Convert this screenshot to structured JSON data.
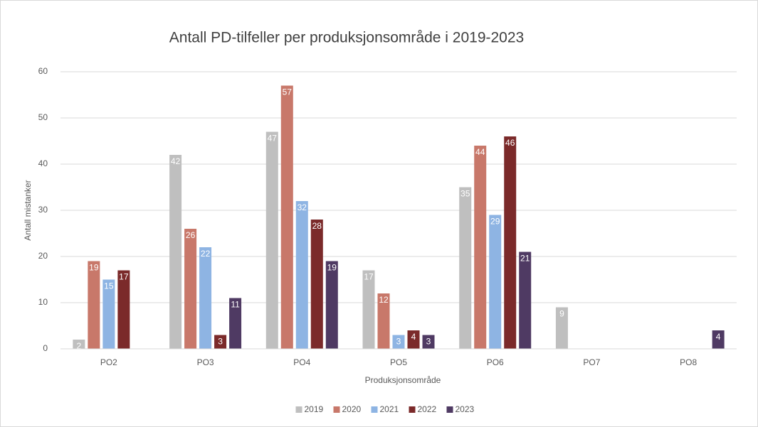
{
  "chart_data": {
    "type": "bar",
    "title": "Antall PD-tilfeller per produksjonsområde i 2019-2023",
    "x_label": "Produksjonsområde",
    "y_label": "Antall mistanker",
    "categories": [
      "PO2",
      "PO3",
      "PO4",
      "PO5",
      "PO6",
      "PO7",
      "PO8"
    ],
    "series": [
      {
        "name": "2019",
        "color": "#bfbfbf",
        "values": [
          2,
          42,
          47,
          17,
          35,
          9,
          null
        ]
      },
      {
        "name": "2020",
        "color": "#c8786a",
        "values": [
          19,
          26,
          57,
          12,
          44,
          null,
          null
        ]
      },
      {
        "name": "2021",
        "color": "#8eb4e3",
        "values": [
          15,
          22,
          32,
          3,
          29,
          null,
          null
        ]
      },
      {
        "name": "2022",
        "color": "#7b2a2a",
        "values": [
          17,
          3,
          28,
          4,
          46,
          null,
          null
        ]
      },
      {
        "name": "2023",
        "color": "#4f3a63",
        "values": [
          null,
          11,
          19,
          3,
          21,
          null,
          4
        ]
      }
    ],
    "ylim": [
      0,
      60
    ],
    "yticks": [
      0,
      10,
      20,
      30,
      40,
      50,
      60
    ],
    "grid": true,
    "legend": "bottom"
  }
}
